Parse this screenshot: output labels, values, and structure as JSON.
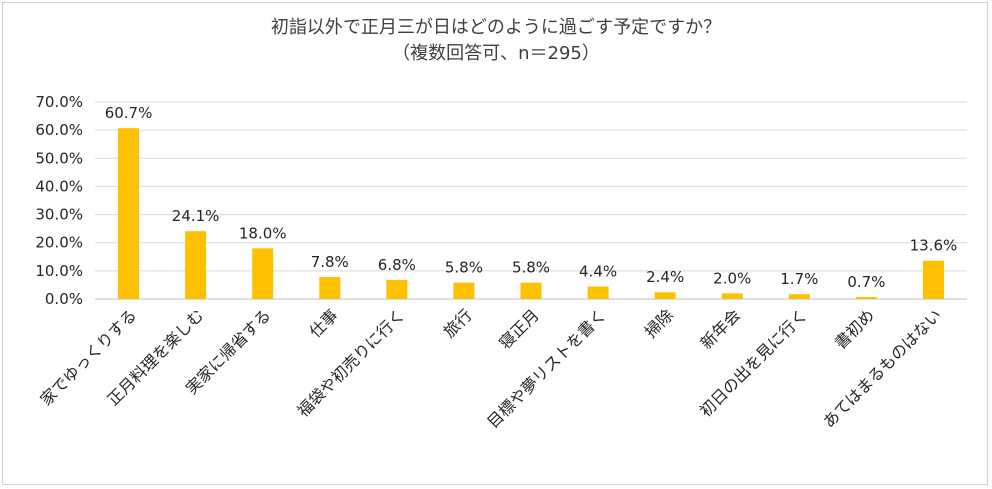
{
  "chart_data": {
    "type": "bar",
    "title": "初詣以外で正月三が日はどのように過ごす予定ですか？",
    "subtitle": "（複数回答可、n＝295）",
    "categories": [
      "家でゆっくりする",
      "正月料理を楽しむ",
      "実家に帰省する",
      "仕事",
      "福袋や初売りに行く",
      "旅行",
      "寝正月",
      "目標や夢リストを書く",
      "掃除",
      "新年会",
      "初日の出を見に行く",
      "書初め",
      "あてはまるものはない"
    ],
    "values": [
      60.7,
      24.1,
      18.0,
      7.8,
      6.8,
      5.8,
      5.8,
      4.4,
      2.4,
      2.0,
      1.7,
      0.7,
      13.6
    ],
    "data_labels": [
      "60.7%",
      "24.1%",
      "18.0%",
      "7.8%",
      "6.8%",
      "5.8%",
      "5.8%",
      "4.4%",
      "2.4%",
      "2.0%",
      "1.7%",
      "0.7%",
      "13.6%"
    ],
    "yticks": [
      "0.0%",
      "10.0%",
      "20.0%",
      "30.0%",
      "40.0%",
      "50.0%",
      "60.0%",
      "70.0%"
    ],
    "ylim": [
      0,
      70
    ],
    "grid": true,
    "bar_color": "#FFC000",
    "gridline_color": "#D9D9D9"
  }
}
